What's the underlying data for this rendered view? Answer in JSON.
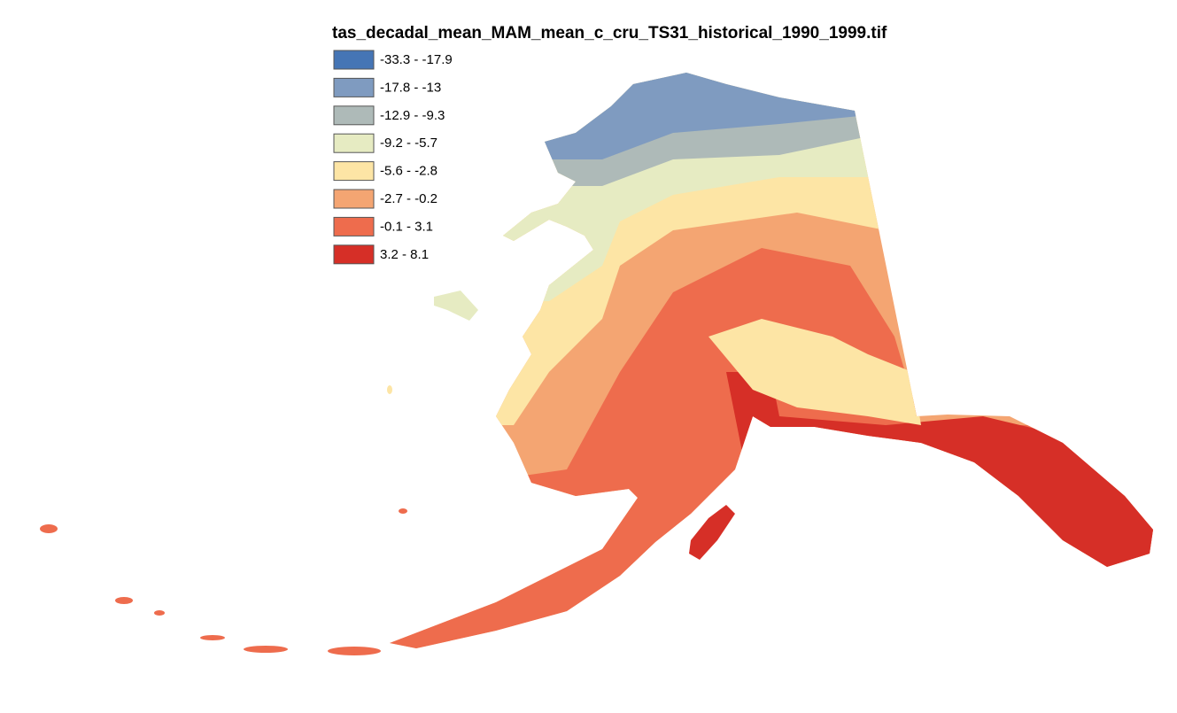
{
  "map": {
    "title": "tas_decadal_mean_MAM_mean_c_cru_TS31_historical_1990_1999.tif",
    "legend": [
      {
        "label": "-33.3 - -17.9",
        "color": "#4575b5"
      },
      {
        "label": "-17.8 - -13",
        "color": "#7f9bc0"
      },
      {
        "label": "-12.9 - -9.3",
        "color": "#aebab8"
      },
      {
        "label": "-9.2 - -5.7",
        "color": "#e6ebc2"
      },
      {
        "label": "-5.6 - -2.8",
        "color": "#fde5a5"
      },
      {
        "label": "-2.7 - -0.2",
        "color": "#f4a572"
      },
      {
        "label": "-0.1 - 3.1",
        "color": "#ee6c4d"
      },
      {
        "label": "3.2 - 8.1",
        "color": "#d62f27"
      }
    ]
  }
}
